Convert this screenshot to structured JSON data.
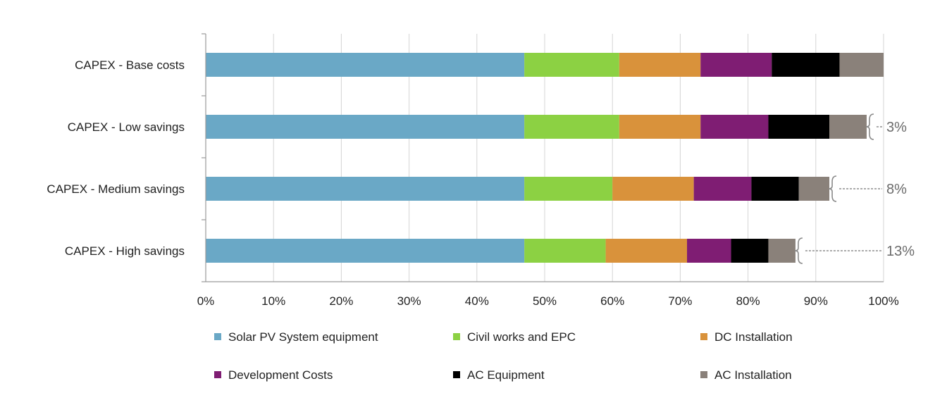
{
  "chart_data": {
    "type": "bar",
    "orientation": "horizontal",
    "stacked": true,
    "categories": [
      "CAPEX - Base costs",
      "CAPEX - Low savings",
      "CAPEX - Medium savings",
      "CAPEX - High savings"
    ],
    "series": [
      {
        "name": "Solar PV System equipment",
        "color": "#6aa8c6",
        "values": [
          47,
          47,
          47,
          47
        ]
      },
      {
        "name": "Civil works and EPC",
        "color": "#8cd143",
        "values": [
          14,
          14,
          13,
          12
        ]
      },
      {
        "name": "DC Installation",
        "color": "#d9923b",
        "values": [
          12,
          12,
          12,
          12
        ]
      },
      {
        "name": "Development Costs",
        "color": "#7f1d73",
        "values": [
          10.5,
          10,
          8.5,
          6.5
        ]
      },
      {
        "name": "AC Equipment",
        "color": "#000000",
        "values": [
          10,
          9,
          7,
          5.5
        ]
      },
      {
        "name": "AC Installation",
        "color": "#8a817a",
        "values": [
          6.5,
          5.5,
          4.5,
          4
        ]
      }
    ],
    "savings_annotations": [
      {
        "category": "CAPEX - Low savings",
        "label": "3%"
      },
      {
        "category": "CAPEX - Medium savings",
        "label": "8%"
      },
      {
        "category": "CAPEX - High savings",
        "label": "13%"
      }
    ],
    "xlim": [
      0,
      100
    ],
    "x_ticks": [
      "0%",
      "10%",
      "20%",
      "30%",
      "40%",
      "50%",
      "60%",
      "70%",
      "80%",
      "90%",
      "100%"
    ],
    "grid": true,
    "legend_position": "bottom"
  }
}
